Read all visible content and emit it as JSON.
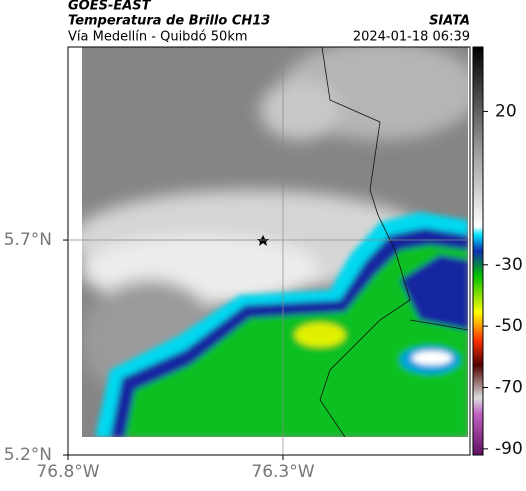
{
  "header": {
    "title": "GOES-EAST",
    "subtitle": "Temperatura de Brillo CH13",
    "brand": "SIATA",
    "route": "Vía Medellín - Quibdó 50km",
    "timestamp": "2024-01-18 06:39"
  },
  "map": {
    "xlim": [
      -76.8,
      -75.865
    ],
    "ylim": [
      5.2,
      6.149
    ],
    "xticks": [
      {
        "value": -76.8,
        "label": "76.8°W"
      },
      {
        "value": -76.3,
        "label": "76.3°W"
      }
    ],
    "yticks": [
      {
        "value": 5.2,
        "label": "5.2°N"
      },
      {
        "value": 5.7,
        "label": "5.7°N"
      }
    ]
  },
  "colorbar": {
    "lim": [
      -92,
      41
    ],
    "ticks": [
      20,
      -30,
      -50,
      -70,
      -90
    ]
  }
}
